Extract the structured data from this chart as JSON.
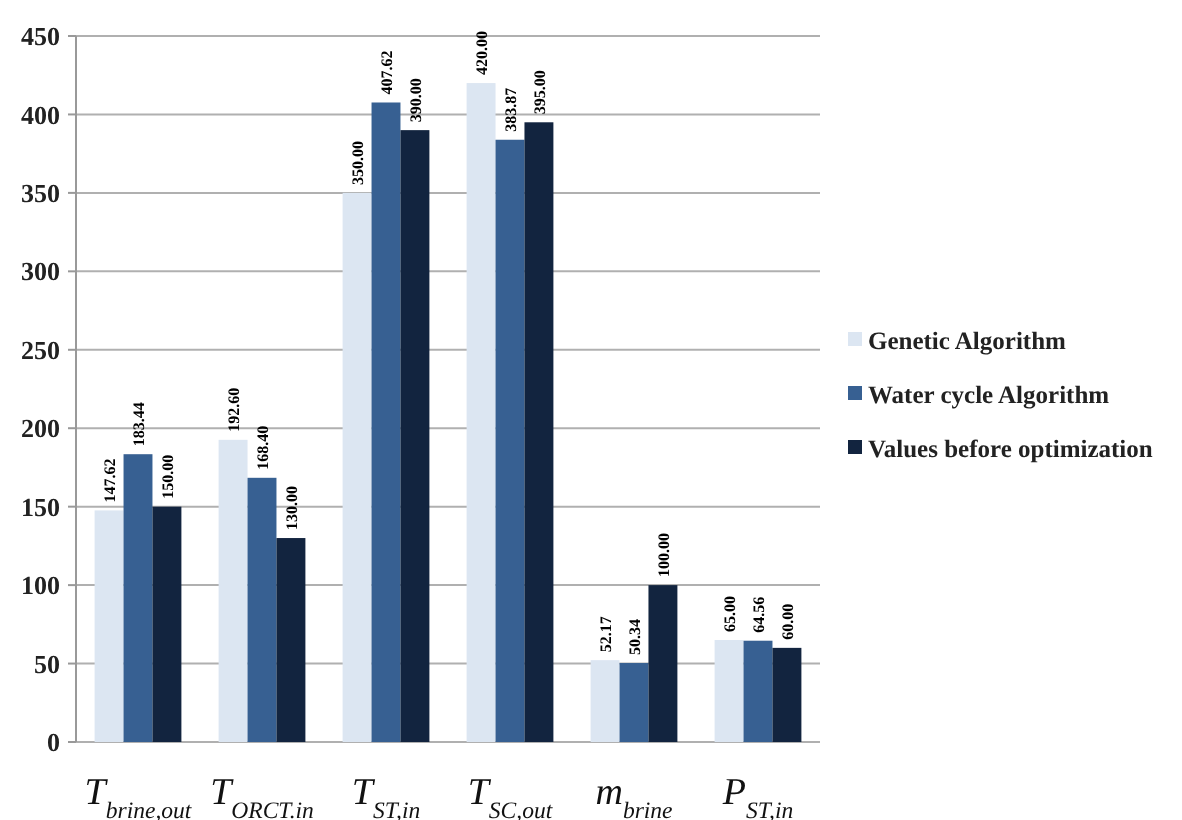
{
  "chart_data": {
    "type": "bar",
    "categories": [
      "T$_{brine,out}$",
      "T$_{ORCT.in}$",
      "T$_{ST,in}$",
      "T$_{SC,out}$",
      "m$_{brine}$",
      "P$_{ST,in}$"
    ],
    "series": [
      {
        "name": "Genetic Algorithm",
        "color": "#dce6f2",
        "values": [
          147.62,
          192.6,
          350,
          420,
          52.17,
          65
        ],
        "value_labels": [
          "147.62",
          "192.60",
          "350.00",
          "420.00",
          "52.17",
          "65.00"
        ]
      },
      {
        "name": "Water cycle Algorithm",
        "color": "#376092",
        "values": [
          183.44,
          168.4,
          407.62,
          383.87,
          50.34,
          64.56
        ],
        "value_labels": [
          "183.44",
          "168.40",
          "407.62",
          "383.87",
          "50.34",
          "64.56"
        ]
      },
      {
        "name": "Values before optimization",
        "color": "#12243f",
        "values": [
          150,
          130,
          390,
          395,
          100,
          60
        ],
        "value_labels": [
          "150.00",
          "130.00",
          "390.00",
          "395.00",
          "100.00",
          "60.00"
        ]
      }
    ],
    "ylim": [
      0,
      450
    ],
    "yticks": [
      0,
      50,
      100,
      150,
      200,
      250,
      300,
      350,
      400,
      450
    ],
    "grid": "y",
    "legend": "right"
  }
}
